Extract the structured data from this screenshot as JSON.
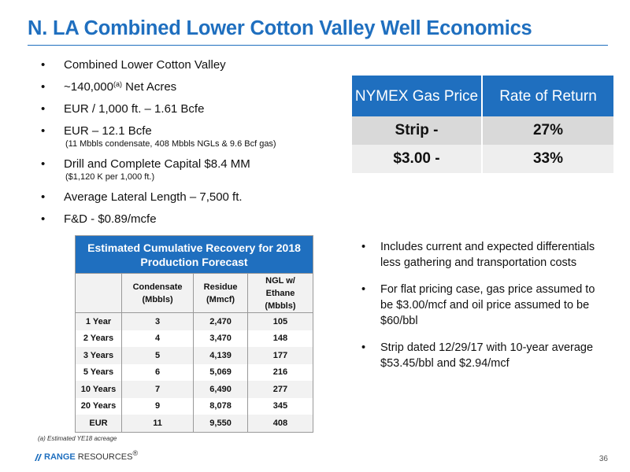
{
  "title": "N. LA Combined Lower Cotton Valley Well Economics",
  "bullets": [
    {
      "text": "Combined Lower Cotton Valley"
    },
    {
      "pre": "~140,000",
      "sup": "(a)",
      "post": " Net Acres"
    },
    {
      "text": "EUR / 1,000 ft. – 1.61 Bcfe"
    },
    {
      "text": "EUR – 12.1 Bcfe",
      "sub": "(11 Mbbls condensate, 408 Mbbls NGLs & 9.6 Bcf gas)"
    },
    {
      "text": "Drill and Complete Capital $8.4 MM",
      "sub": "($1,120 K per 1,000 ft.)"
    },
    {
      "text": "Average Lateral Length – 7,500 ft."
    },
    {
      "text": "F&D - $0.89/mcfe"
    }
  ],
  "nymex_table": {
    "col1": "NYMEX Gas Price",
    "col2": "Rate of Return",
    "rows": [
      {
        "price": "Strip -",
        "ror": "27%"
      },
      {
        "price": "$3.00 -",
        "ror": "33%"
      }
    ]
  },
  "recovery_table": {
    "caption": "Estimated Cumulative Recovery for 2018 Production Forecast",
    "headers": [
      "Condensate (Mbbls)",
      "Residue (Mmcf)",
      "NGL w/ Ethane (Mbbls)"
    ],
    "rows": [
      {
        "label": "1 Year",
        "cond": "3",
        "res": "2,470",
        "ngl": "105"
      },
      {
        "label": "2 Years",
        "cond": "4",
        "res": "3,470",
        "ngl": "148"
      },
      {
        "label": "3 Years",
        "cond": "5",
        "res": "4,139",
        "ngl": "177"
      },
      {
        "label": "5 Years",
        "cond": "6",
        "res": "5,069",
        "ngl": "216"
      },
      {
        "label": "10 Years",
        "cond": "7",
        "res": "6,490",
        "ngl": "277"
      },
      {
        "label": "20 Years",
        "cond": "9",
        "res": "8,078",
        "ngl": "345"
      },
      {
        "label": "EUR",
        "cond": "11",
        "res": "9,550",
        "ngl": "408"
      }
    ]
  },
  "right_bullets": [
    "Includes current and expected differentials less gathering and transportation costs",
    "For flat pricing case, gas price assumed to be $3.00/mcf and oil price assumed to be $60/bbl",
    "Strip dated 12/29/17 with 10-year average $53.45/bbl and $2.94/mcf"
  ],
  "footnote": "(a) Estimated YE18 acreage",
  "logo": {
    "range": "RANGE",
    "resources": " RESOURCES",
    "tm": "®"
  },
  "page_number": "36",
  "colors": {
    "accent": "#1f6fbf",
    "row_dark": "#d9d9d9",
    "row_light": "#eeeeee"
  }
}
